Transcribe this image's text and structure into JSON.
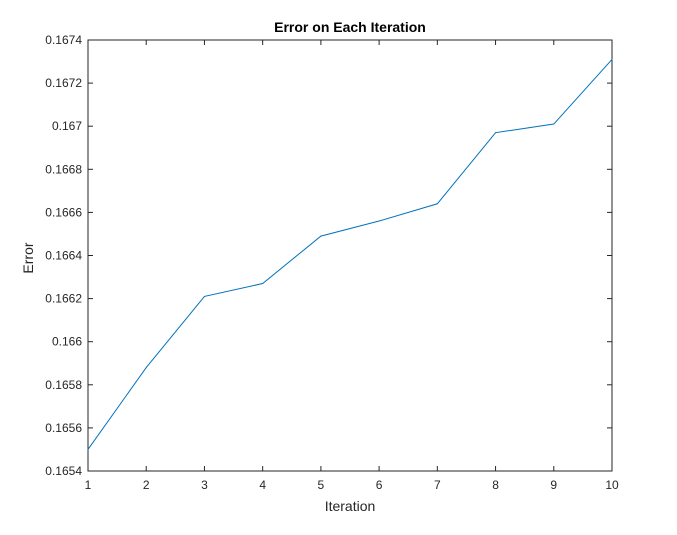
{
  "chart_data": {
    "type": "line",
    "title": "Error on Each Iteration",
    "xlabel": "Iteration",
    "ylabel": "Error",
    "xlim": [
      1,
      10
    ],
    "ylim": [
      0.1654,
      0.1674
    ],
    "x_ticks": [
      "1",
      "2",
      "3",
      "4",
      "5",
      "6",
      "7",
      "8",
      "9",
      "10"
    ],
    "y_ticks": [
      "0.1654",
      "0.1656",
      "0.1658",
      "0.166",
      "0.1662",
      "0.1664",
      "0.1666",
      "0.1668",
      "0.167",
      "0.1672",
      "0.1674"
    ],
    "grid": false,
    "series": [
      {
        "color": "#0072bd",
        "x": [
          1,
          2,
          3,
          4,
          5,
          6,
          7,
          8,
          9,
          10
        ],
        "values": [
          0.1655,
          0.16588,
          0.16621,
          0.16627,
          0.16649,
          0.16656,
          0.16664,
          0.16697,
          0.16701,
          0.16731
        ]
      }
    ]
  }
}
